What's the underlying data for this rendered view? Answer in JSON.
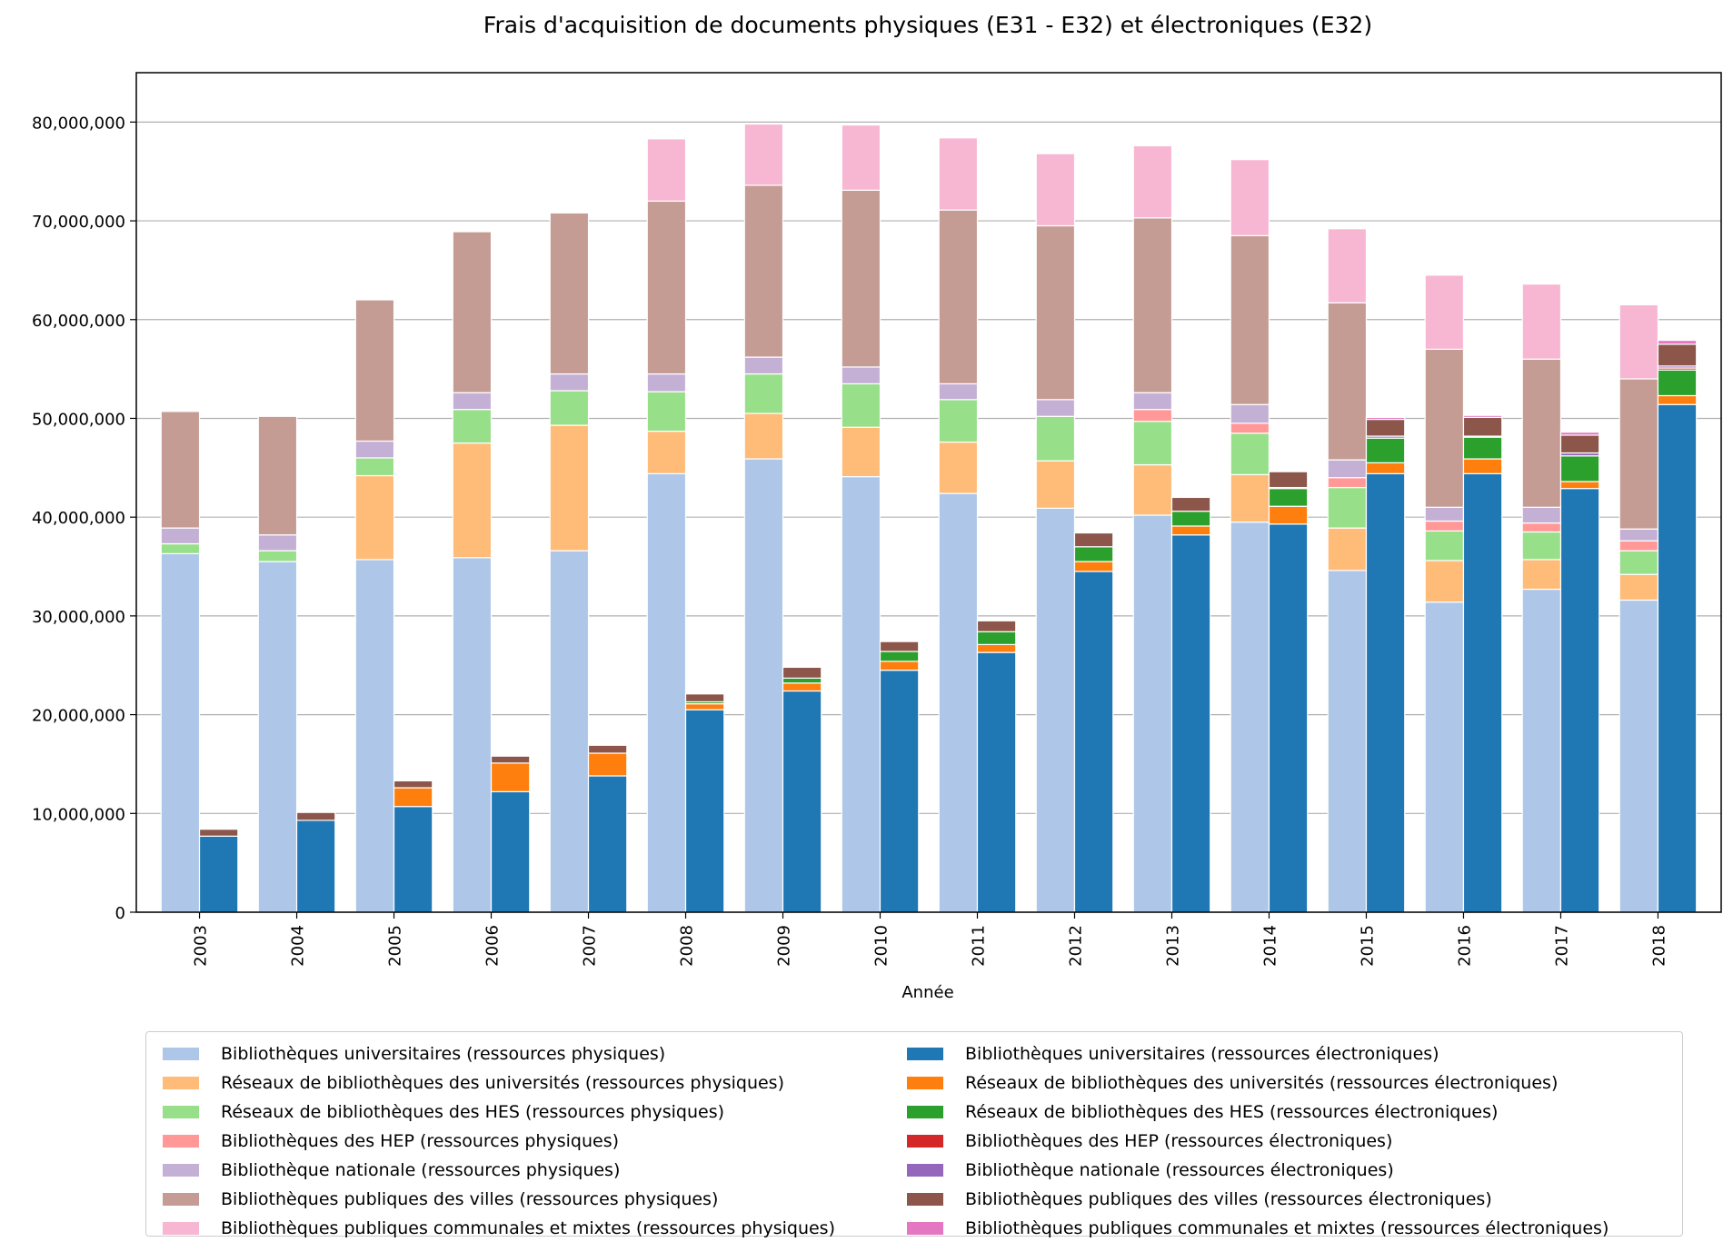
{
  "chart_data": {
    "type": "bar",
    "title": "Frais d'acquisition de documents physiques (E31 - E32) et électroniques (E32)",
    "xlabel": "Année",
    "ylabel": "",
    "ylim": [
      0,
      85000000
    ],
    "yticks": [
      0,
      10000000,
      20000000,
      30000000,
      40000000,
      50000000,
      60000000,
      70000000,
      80000000
    ],
    "ytick_labels": [
      "0",
      "10,000,000",
      "20,000,000",
      "30,000,000",
      "40,000,000",
      "50,000,000",
      "60,000,000",
      "70,000,000",
      "80,000,000"
    ],
    "grid": "horizontal",
    "legend_position": "bottom",
    "categories": [
      "2003",
      "2004",
      "2005",
      "2006",
      "2007",
      "2008",
      "2009",
      "2010",
      "2011",
      "2012",
      "2013",
      "2014",
      "2015",
      "2016",
      "2017",
      "2018"
    ],
    "stacks": [
      {
        "stack": "physiques",
        "series": [
          {
            "name": "Bibliothèques universitaires (ressources physiques)",
            "color": "#aec7e8",
            "values": [
              36300000,
              35500000,
              35700000,
              35900000,
              36600000,
              44400000,
              45900000,
              44100000,
              42400000,
              40900000,
              40200000,
              39500000,
              34600000,
              31400000,
              32700000,
              31600000
            ]
          },
          {
            "name": "Réseaux de bibliothèques des universités (ressources physiques)",
            "color": "#ffbb78",
            "values": [
              0,
              0,
              8500000,
              11600000,
              12700000,
              4300000,
              4600000,
              5000000,
              5200000,
              4800000,
              5100000,
              4800000,
              4300000,
              4200000,
              3000000,
              2600000
            ]
          },
          {
            "name": "Réseaux de bibliothèques des HES (ressources physiques)",
            "color": "#98df8a",
            "values": [
              1000000,
              1100000,
              1800000,
              3400000,
              3500000,
              4000000,
              4000000,
              4400000,
              4300000,
              4500000,
              4400000,
              4200000,
              4100000,
              3000000,
              2800000,
              2400000
            ]
          },
          {
            "name": "Bibliothèques des HEP (ressources physiques)",
            "color": "#ff9896",
            "values": [
              0,
              0,
              0,
              0,
              0,
              0,
              0,
              0,
              0,
              0,
              1200000,
              1000000,
              1000000,
              1000000,
              900000,
              1000000
            ]
          },
          {
            "name": "Bibliothèque nationale (ressources physiques)",
            "color": "#c5b0d5",
            "values": [
              1600000,
              1600000,
              1700000,
              1700000,
              1700000,
              1800000,
              1700000,
              1700000,
              1600000,
              1700000,
              1700000,
              1900000,
              1800000,
              1400000,
              1600000,
              1200000
            ]
          },
          {
            "name": "Bibliothèques publiques des villes (ressources physiques)",
            "color": "#c49c94",
            "values": [
              11800000,
              12000000,
              14300000,
              16300000,
              16300000,
              17500000,
              17400000,
              17900000,
              17600000,
              17600000,
              17700000,
              17100000,
              15900000,
              16000000,
              15000000,
              15200000
            ]
          },
          {
            "name": "Bibliothèques publiques communales et mixtes (ressources physiques)",
            "color": "#f7b6d2",
            "values": [
              0,
              0,
              0,
              0,
              0,
              6300000,
              6200000,
              6600000,
              7300000,
              7300000,
              7300000,
              7700000,
              7500000,
              7500000,
              7600000,
              7500000
            ]
          }
        ]
      },
      {
        "stack": "électroniques",
        "series": [
          {
            "name": "Bibliothèques universitaires (ressources électroniques)",
            "color": "#1f77b4",
            "values": [
              7700000,
              9300000,
              10700000,
              12200000,
              13800000,
              20500000,
              22400000,
              24500000,
              26300000,
              34500000,
              38200000,
              39300000,
              44400000,
              44400000,
              42900000,
              51400000
            ]
          },
          {
            "name": "Réseaux de bibliothèques des universités (ressources électroniques)",
            "color": "#ff7f0e",
            "values": [
              0,
              0,
              1900000,
              2900000,
              2300000,
              600000,
              800000,
              900000,
              800000,
              1000000,
              900000,
              1800000,
              1100000,
              1500000,
              700000,
              900000
            ]
          },
          {
            "name": "Réseaux de bibliothèques des HES (ressources électroniques)",
            "color": "#2ca02c",
            "values": [
              0,
              0,
              0,
              0,
              0,
              200000,
              500000,
              1000000,
              1300000,
              1500000,
              1500000,
              1800000,
              2500000,
              2200000,
              2600000,
              2600000
            ]
          },
          {
            "name": "Bibliothèques des HEP (ressources électroniques)",
            "color": "#d62728",
            "values": [
              0,
              0,
              0,
              0,
              0,
              0,
              0,
              0,
              0,
              0,
              0,
              0,
              0,
              0,
              0,
              200000
            ]
          },
          {
            "name": "Bibliothèque nationale (ressources électroniques)",
            "color": "#9467bd",
            "values": [
              0,
              0,
              0,
              0,
              0,
              0,
              0,
              0,
              0,
              0,
              0,
              100000,
              200000,
              100000,
              300000,
              200000
            ]
          },
          {
            "name": "Bibliothèques publiques des villes (ressources électroniques)",
            "color": "#8c564b",
            "values": [
              700000,
              800000,
              700000,
              700000,
              800000,
              800000,
              1100000,
              1000000,
              1100000,
              1400000,
              1400000,
              1600000,
              1700000,
              1900000,
              1800000,
              2200000
            ]
          },
          {
            "name": "Bibliothèques publiques communales et mixtes (ressources électroniques)",
            "color": "#e377c2",
            "values": [
              0,
              0,
              0,
              0,
              0,
              0,
              0,
              0,
              0,
              0,
              0,
              0,
              200000,
              200000,
              300000,
              400000
            ]
          }
        ]
      }
    ]
  }
}
